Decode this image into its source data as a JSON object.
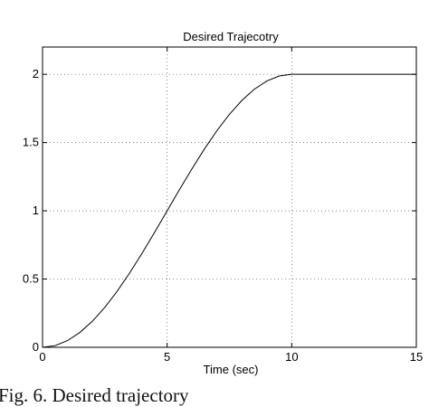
{
  "figure": {
    "caption": "Fig. 6. Desired trajectory"
  },
  "chart_data": {
    "type": "line",
    "title": "Desired Trajecotry",
    "xlabel": "Time (sec)",
    "ylabel": "",
    "xlim": [
      0,
      15
    ],
    "ylim": [
      0,
      2.2
    ],
    "xticks": [
      0,
      5,
      10,
      15
    ],
    "yticks": [
      0,
      0.5,
      1,
      1.5,
      2
    ],
    "xtick_labels": [
      "0",
      "5",
      "10",
      "15"
    ],
    "ytick_labels": [
      "0",
      "0.5",
      "1",
      "1.5",
      "2"
    ],
    "grid": true,
    "series": [
      {
        "color": "#000000",
        "x": [
          0,
          0.5,
          1,
          1.5,
          2,
          2.5,
          3,
          3.5,
          4,
          4.5,
          5,
          5.5,
          6,
          6.5,
          7,
          7.5,
          8,
          8.5,
          9,
          9.5,
          10,
          11,
          12,
          13,
          14,
          15
        ],
        "y": [
          0,
          0.012,
          0.049,
          0.109,
          0.191,
          0.293,
          0.412,
          0.546,
          0.691,
          0.843,
          1.0,
          1.157,
          1.309,
          1.454,
          1.588,
          1.707,
          1.809,
          1.891,
          1.951,
          1.988,
          2.0,
          2.0,
          2.0,
          2.0,
          2.0,
          2.0
        ]
      }
    ]
  }
}
